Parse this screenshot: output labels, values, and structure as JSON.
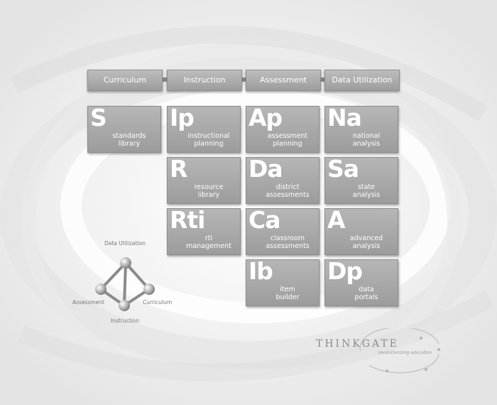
{
  "header": {
    "columns": [
      {
        "label": "Curriculum"
      },
      {
        "label": "Instruction"
      },
      {
        "label": "Assessment"
      },
      {
        "label": "Data Utilization"
      }
    ]
  },
  "tiles": [
    {
      "abbr": "S",
      "label": "standards\nlibrary"
    },
    {
      "abbr": "Ip",
      "label": "instructional\nplanning"
    },
    {
      "abbr": "Ap",
      "label": "assessment\nplanning"
    },
    {
      "abbr": "Na",
      "label": "national\nanalysis"
    },
    {
      "abbr": "R",
      "label": "resource\nlibrary"
    },
    {
      "abbr": "Da",
      "label": "district\nassessments"
    },
    {
      "abbr": "Sa",
      "label": "state\nanalysis"
    },
    {
      "abbr": "Rti",
      "label": "rti\nmanagement"
    },
    {
      "abbr": "Ca",
      "label": "classroom\nassessments"
    },
    {
      "abbr": "A",
      "label": "advanced\nanalysis"
    },
    {
      "abbr": "Ib",
      "label": "item\nbuilder"
    },
    {
      "abbr": "Dp",
      "label": "data\nportals"
    }
  ],
  "diagram": {
    "top": "Data Utilization",
    "left": "Assessment",
    "right": "Curriculum",
    "bottom": "Instruction"
  },
  "logo": {
    "name": "THINKGATE",
    "tagline": "revolutionizing education"
  }
}
